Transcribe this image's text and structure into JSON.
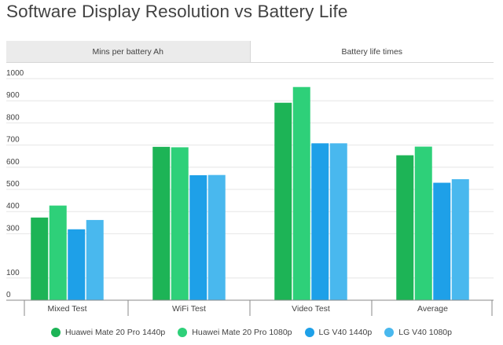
{
  "title": "Software Display Resolution vs Battery Life",
  "tabs": [
    {
      "label": "Mins per battery Ah",
      "active": false
    },
    {
      "label": "Battery life times",
      "active": true
    }
  ],
  "chart_data": {
    "type": "bar",
    "title": "Software Display Resolution vs Battery Life",
    "categories": [
      "Mixed Test",
      "WiFi Test",
      "Video Test",
      "Average"
    ],
    "series": [
      {
        "name": "Huawei Mate 20 Pro 1440p",
        "color": "#1db456",
        "values": [
          373,
          692,
          891,
          654
        ]
      },
      {
        "name": "Huawei Mate 20 Pro 1080p",
        "color": "#2ed079",
        "values": [
          427,
          690,
          962,
          693
        ]
      },
      {
        "name": "LG V40 1440p",
        "color": "#1ea0e8",
        "values": [
          320,
          564,
          708,
          530
        ]
      },
      {
        "name": "LG V40 1080p",
        "color": "#49b8ee",
        "values": [
          362,
          565,
          708,
          546
        ]
      }
    ],
    "ylim": [
      0,
      1000
    ],
    "yticks": [
      0,
      100,
      300,
      400,
      500,
      600,
      700,
      800,
      900,
      1000
    ],
    "xlabel": "",
    "ylabel": "",
    "grid": true,
    "legend": "bottom"
  }
}
